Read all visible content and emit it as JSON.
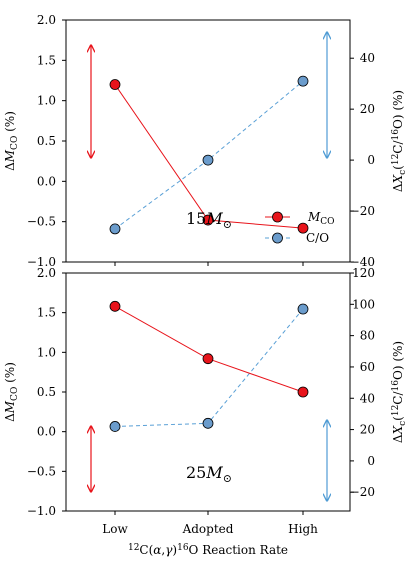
{
  "figure": {
    "xlabel": "¹²C(α,γ)¹⁶O Reaction Rate",
    "categories": [
      "Low",
      "Adopted",
      "High"
    ]
  },
  "legend": {
    "mco_label": "M_CO",
    "co_label": "C/O"
  },
  "colors": {
    "mco": "#e8141b",
    "co": "#5aa0d6",
    "co_marker": "#6b9ccc",
    "arrow_red": "#e8141b",
    "arrow_blue": "#4f9bd4"
  },
  "chart_data": [
    {
      "type": "line",
      "panel": "top",
      "annotation": "15M⊙",
      "categories": [
        "Low",
        "Adopted",
        "High"
      ],
      "ylabel_left": "ΔM_CO (%)",
      "ylabel_right": "ΔX_c(¹²C/¹⁶O) (%)",
      "ylim_left": [
        -1.0,
        2.0
      ],
      "ylim_right": [
        -40,
        55
      ],
      "yticks_left": [
        "2.0",
        "1.5",
        "1.0",
        "0.5",
        "0.0",
        "-0.5",
        "-1.0"
      ],
      "yticks_right": [
        "40",
        "20",
        "0",
        "-20",
        "-40"
      ],
      "legend": "lower-right",
      "series": [
        {
          "name": "M_CO",
          "axis": "left",
          "values": [
            1.2,
            -0.48,
            -0.58
          ]
        },
        {
          "name": "C/O",
          "axis": "right",
          "values": [
            -27,
            0,
            31
          ]
        }
      ]
    },
    {
      "type": "line",
      "panel": "bottom",
      "annotation": "25M⊙",
      "categories": [
        "Low",
        "Adopted",
        "High"
      ],
      "ylabel_left": "ΔM_CO (%)",
      "ylabel_right": "ΔX_c(¹²C/¹⁶O) (%)",
      "ylim_left": [
        -1.0,
        2.0
      ],
      "ylim_right": [
        -32,
        120
      ],
      "yticks_left": [
        "2.0",
        "1.5",
        "1.0",
        "0.5",
        "0.0",
        "-0.5",
        "-1.0"
      ],
      "yticks_right": [
        "120",
        "100",
        "80",
        "60",
        "40",
        "20",
        "0",
        "-20"
      ],
      "series": [
        {
          "name": "M_CO",
          "axis": "left",
          "values": [
            1.58,
            0.92,
            0.5
          ]
        },
        {
          "name": "C/O",
          "axis": "right",
          "values": [
            22,
            24,
            97
          ]
        }
      ]
    }
  ]
}
